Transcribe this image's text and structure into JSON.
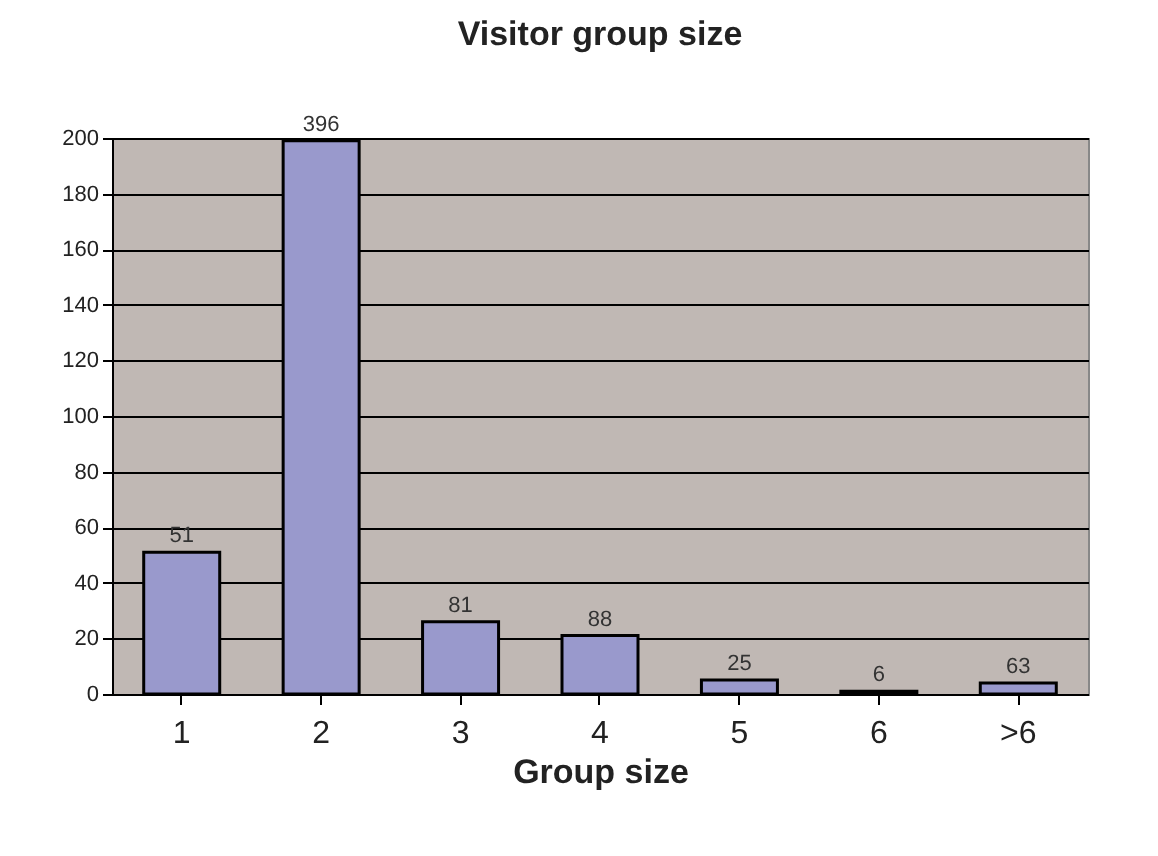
{
  "chart_data": {
    "type": "bar",
    "title": "Visitor group size",
    "xlabel": "Group size",
    "categories": [
      "1",
      "2",
      "3",
      "4",
      "5",
      "6",
      ">6"
    ],
    "values": [
      51,
      199,
      26,
      21,
      5,
      1,
      4
    ],
    "annotations": [
      {
        "text": "51",
        "x": "1",
        "y": 51
      },
      {
        "text": "396",
        "x": "2",
        "y": 199
      },
      {
        "text": "81",
        "x": "3",
        "y": 26
      },
      {
        "text": "88",
        "x": "4",
        "y": 21
      },
      {
        "text": "25",
        "x": "5",
        "y": 5
      },
      {
        "text": "6",
        "x": "6",
        "y": 1
      },
      {
        "text": "63",
        "x": ">6",
        "y": 4
      }
    ],
    "color": "#9999cc",
    "ylim": [
      0,
      200
    ],
    "yticks": [
      0,
      20,
      40,
      60,
      80,
      100,
      120,
      140,
      160,
      180,
      200
    ],
    "grid": "y"
  }
}
